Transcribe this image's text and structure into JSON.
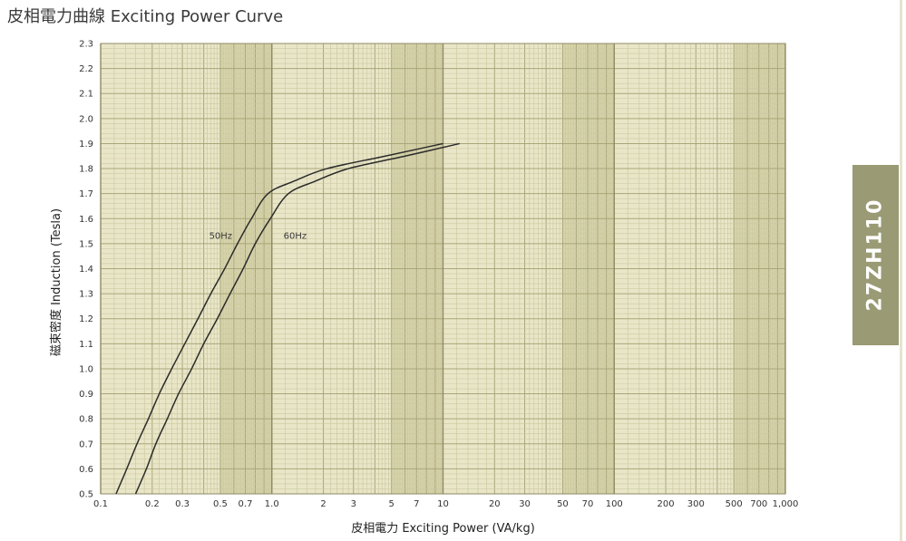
{
  "title": "皮相電力曲線 Exciting Power Curve",
  "side_tab": {
    "label": "27ZH110"
  },
  "chart_data": {
    "type": "line",
    "title": "皮相電力曲線 Exciting Power Curve",
    "xlabel": "皮相電力 Exciting Power (VA/kg)",
    "ylabel": "磁束密度 Induction (Tesla)",
    "x_scale": "log",
    "xlim": [
      0.1,
      1000
    ],
    "ylim": [
      0.5,
      2.3
    ],
    "grid": true,
    "legend": "inline labels",
    "x_ticks": [
      {
        "v": 0.1,
        "t": "0.1"
      },
      {
        "v": 0.2,
        "t": "0.2"
      },
      {
        "v": 0.3,
        "t": "0.3"
      },
      {
        "v": 0.5,
        "t": "0.5"
      },
      {
        "v": 0.7,
        "t": "0.7"
      },
      {
        "v": 1,
        "t": "1.0"
      },
      {
        "v": 2,
        "t": "2"
      },
      {
        "v": 3,
        "t": "3"
      },
      {
        "v": 5,
        "t": "5"
      },
      {
        "v": 7,
        "t": "7"
      },
      {
        "v": 10,
        "t": "10"
      },
      {
        "v": 20,
        "t": "20"
      },
      {
        "v": 30,
        "t": "30"
      },
      {
        "v": 50,
        "t": "50"
      },
      {
        "v": 70,
        "t": "70"
      },
      {
        "v": 100,
        "t": "100"
      },
      {
        "v": 200,
        "t": "200"
      },
      {
        "v": 300,
        "t": "300"
      },
      {
        "v": 500,
        "t": "500"
      },
      {
        "v": 700,
        "t": "700"
      },
      {
        "v": 1000,
        "t": "1,000"
      }
    ],
    "y_ticks": [
      {
        "v": 0.5,
        "t": "0.5"
      },
      {
        "v": 0.6,
        "t": "0.6"
      },
      {
        "v": 0.7,
        "t": "0.7"
      },
      {
        "v": 0.8,
        "t": "0.8"
      },
      {
        "v": 0.9,
        "t": "0.9"
      },
      {
        "v": 1.0,
        "t": "1.0"
      },
      {
        "v": 1.1,
        "t": "1.1"
      },
      {
        "v": 1.2,
        "t": "1.2"
      },
      {
        "v": 1.3,
        "t": "1.3"
      },
      {
        "v": 1.4,
        "t": "1.4"
      },
      {
        "v": 1.5,
        "t": "1.5"
      },
      {
        "v": 1.6,
        "t": "1.6"
      },
      {
        "v": 1.7,
        "t": "1.7"
      },
      {
        "v": 1.8,
        "t": "1.8"
      },
      {
        "v": 1.9,
        "t": "1.9"
      },
      {
        "v": 2.0,
        "t": "2.0"
      },
      {
        "v": 2.1,
        "t": "2.1"
      },
      {
        "v": 2.2,
        "t": "2.2"
      },
      {
        "v": 2.3,
        "t": "2.3"
      }
    ],
    "series": [
      {
        "name": "50Hz",
        "label_at": {
          "x": 0.43,
          "y": 1.52
        },
        "points": [
          [
            0.123,
            0.5
          ],
          [
            0.142,
            0.6
          ],
          [
            0.163,
            0.7
          ],
          [
            0.19,
            0.8
          ],
          [
            0.22,
            0.9
          ],
          [
            0.26,
            1.0
          ],
          [
            0.31,
            1.1
          ],
          [
            0.37,
            1.2
          ],
          [
            0.44,
            1.3
          ],
          [
            0.53,
            1.4
          ],
          [
            0.63,
            1.5
          ],
          [
            0.76,
            1.6
          ],
          [
            0.95,
            1.7
          ],
          [
            1.35,
            1.75
          ],
          [
            2.1,
            1.8
          ],
          [
            4.6,
            1.85
          ],
          [
            10.0,
            1.9
          ]
        ]
      },
      {
        "name": "60Hz",
        "label_at": {
          "x": 1.17,
          "y": 1.52
        },
        "points": [
          [
            0.16,
            0.5
          ],
          [
            0.185,
            0.6
          ],
          [
            0.21,
            0.7
          ],
          [
            0.245,
            0.8
          ],
          [
            0.285,
            0.9
          ],
          [
            0.34,
            1.0
          ],
          [
            0.4,
            1.1
          ],
          [
            0.48,
            1.2
          ],
          [
            0.57,
            1.3
          ],
          [
            0.68,
            1.4
          ],
          [
            0.8,
            1.5
          ],
          [
            0.98,
            1.6
          ],
          [
            1.25,
            1.7
          ],
          [
            1.8,
            1.75
          ],
          [
            2.8,
            1.8
          ],
          [
            6.0,
            1.85
          ],
          [
            12.5,
            1.9
          ]
        ]
      }
    ]
  }
}
